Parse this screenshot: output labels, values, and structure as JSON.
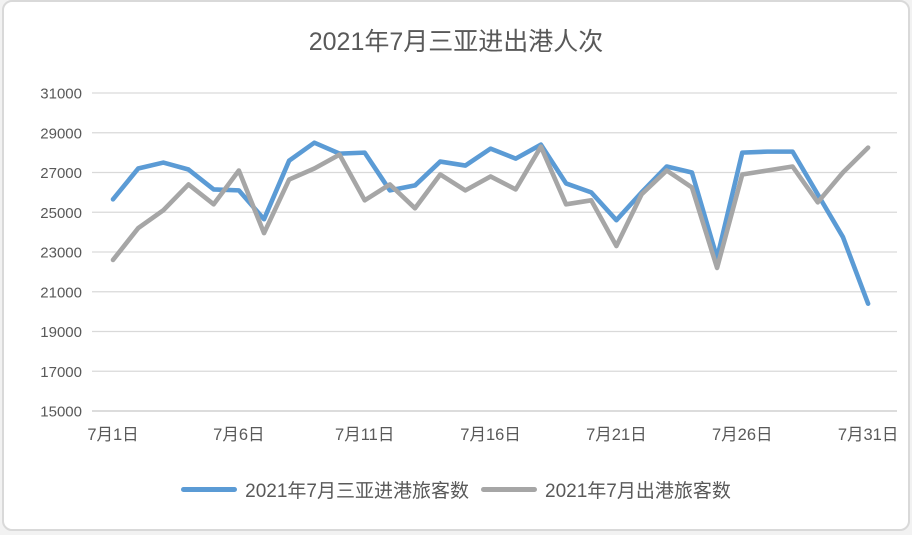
{
  "title": "2021年7月三亚进出港人次",
  "colors": {
    "arrivals": "#5B9BD5",
    "departures": "#A6A6A6",
    "text": "#595959",
    "gridline": "#D9D9D9",
    "axis": "#C6C6C6",
    "background": "#FFFFFF",
    "border": "#D9D9D9"
  },
  "chart_data": {
    "type": "line",
    "title": "2021年7月三亚进出港人次",
    "xlabel": "",
    "ylabel": "",
    "x": [
      1,
      2,
      3,
      4,
      5,
      6,
      7,
      8,
      9,
      10,
      11,
      12,
      13,
      14,
      15,
      16,
      17,
      18,
      19,
      20,
      21,
      22,
      23,
      24,
      25,
      26,
      27,
      28,
      29,
      30,
      31
    ],
    "x_tick_positions": [
      1,
      6,
      11,
      16,
      21,
      26,
      31
    ],
    "x_tick_labels": [
      "7月1日",
      "7月6日",
      "7月11日",
      "7月16日",
      "7月21日",
      "7月26日",
      "7月31日"
    ],
    "ylim": [
      15000,
      31000
    ],
    "y_ticks": [
      15000,
      17000,
      19000,
      21000,
      23000,
      25000,
      27000,
      29000,
      31000
    ],
    "grid": "horizontal",
    "legend_position": "bottom",
    "series": [
      {
        "name": "2021年7月三亚进港旅客数",
        "color": "#5B9BD5",
        "values": [
          25650,
          27200,
          27500,
          27150,
          26150,
          26100,
          24650,
          27600,
          28500,
          27950,
          28000,
          26100,
          26350,
          27550,
          27350,
          28200,
          27700,
          28400,
          26450,
          26000,
          24600,
          26000,
          27300,
          27000,
          22700,
          28000,
          28050,
          28050,
          25900,
          23750,
          20400
        ]
      },
      {
        "name": "2021年7月出港旅客数",
        "color": "#A6A6A6",
        "values": [
          22600,
          24200,
          25100,
          26400,
          25400,
          27100,
          23950,
          26650,
          27200,
          27900,
          25600,
          26400,
          25200,
          26900,
          26100,
          26800,
          26150,
          28300,
          25400,
          25600,
          23300,
          25900,
          27100,
          26250,
          22200,
          26900,
          27100,
          27300,
          25500,
          27000,
          28250
        ]
      }
    ]
  }
}
